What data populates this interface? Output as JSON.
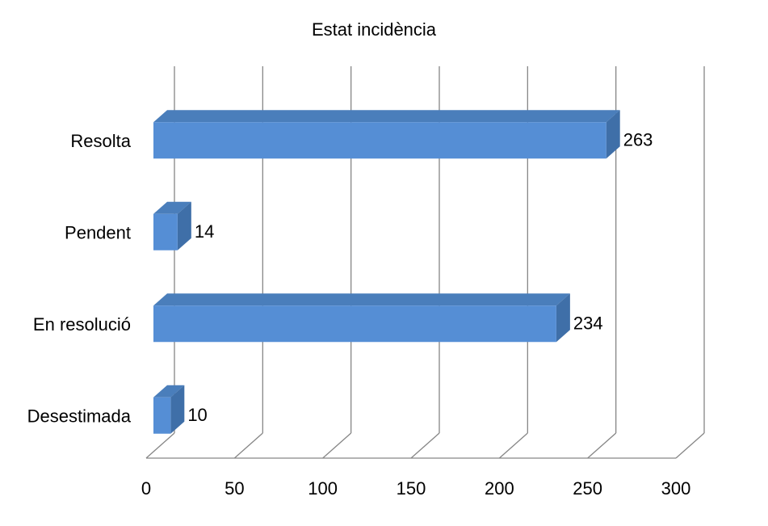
{
  "chart_data": {
    "type": "bar",
    "orientation": "horizontal",
    "title": "Estat incidència",
    "categories": [
      "Resolta",
      "Pendent",
      "En resolució",
      "Desestimada"
    ],
    "values": [
      263,
      14,
      234,
      10
    ],
    "data_labels": [
      "263",
      "14",
      "234",
      "10"
    ],
    "xlim": [
      0,
      300
    ],
    "x_ticks": [
      "0",
      "50",
      "100",
      "150",
      "200",
      "250",
      "300"
    ],
    "grid": true,
    "legend": "none",
    "colors": {
      "bar_front": "#558ED5",
      "bar_top": "#4A7EBB",
      "bar_side": "#3F6FA8",
      "grid": "#868686"
    }
  }
}
